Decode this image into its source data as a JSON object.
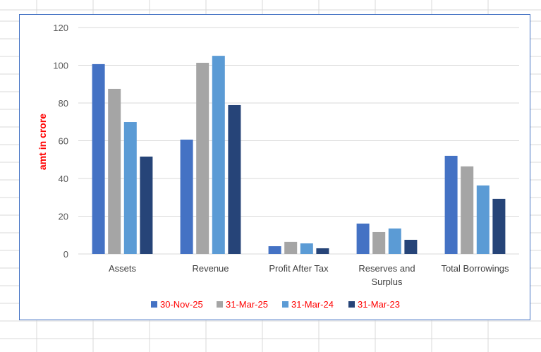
{
  "chart_data": {
    "type": "bar",
    "title": "",
    "xlabel": "",
    "ylabel": "amt in crore",
    "ylim": [
      0,
      120
    ],
    "yticks": [
      "0",
      "20",
      "40",
      "60",
      "80",
      "100",
      "120"
    ],
    "grid": true,
    "legend_position": "bottom",
    "categories": [
      [
        "Assets"
      ],
      [
        "Revenue"
      ],
      [
        "Profit After Tax"
      ],
      [
        "Reserves and",
        "Surplus"
      ],
      [
        "Total Borrowings"
      ]
    ],
    "series": [
      {
        "name": "30-Nov-25",
        "color": "#4472c4",
        "values": [
          100.6,
          60.6,
          4.1,
          16.1,
          52.0
        ]
      },
      {
        "name": "31-Mar-25",
        "color": "#a5a5a5",
        "values": [
          87.5,
          101.3,
          6.4,
          11.6,
          46.4
        ]
      },
      {
        "name": "31-Mar-24",
        "color": "#5b9bd5",
        "values": [
          69.9,
          105.0,
          5.6,
          13.5,
          36.3
        ]
      },
      {
        "name": "31-Mar-23",
        "color": "#264478",
        "values": [
          51.6,
          78.9,
          3.0,
          7.5,
          29.2
        ]
      }
    ],
    "label_color": "#ff0000"
  }
}
